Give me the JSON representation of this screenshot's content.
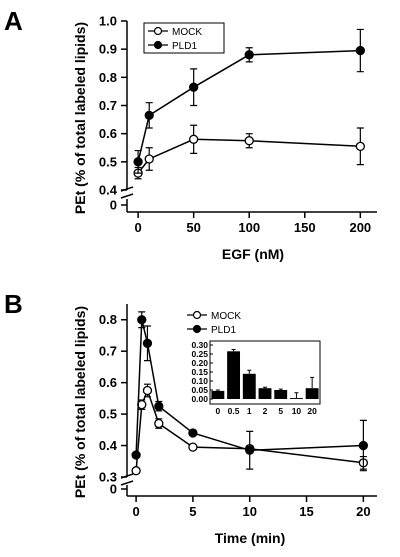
{
  "chart_data": [
    {
      "panel": "A",
      "type": "line",
      "xlabel": "EGF (nM)",
      "ylabel": "PEt (% of total labeled lipids)",
      "xlim": [
        -10,
        215
      ],
      "ylim": [
        0.4,
        1.0
      ],
      "axis_break": "y",
      "y_below_break_tick": "0",
      "xticks": [
        0,
        50,
        100,
        150,
        200
      ],
      "yticks": [
        0.4,
        0.5,
        0.6,
        0.7,
        0.8,
        0.9,
        1.0
      ],
      "xtick_labels": [
        "0",
        "50",
        "100",
        "150",
        "200"
      ],
      "ytick_labels": [
        "0.4",
        "0.5",
        "0.6",
        "0.7",
        "0.8",
        "0.9",
        "1.0"
      ],
      "legend_position": "top-left",
      "series": [
        {
          "name": "MOCK",
          "marker": "open-circle",
          "x": [
            0,
            10,
            50,
            100,
            200
          ],
          "y": [
            0.46,
            0.51,
            0.58,
            0.575,
            0.555
          ],
          "err": [
            0.02,
            0.04,
            0.05,
            0.025,
            0.065
          ]
        },
        {
          "name": "PLD1",
          "marker": "filled-circle",
          "x": [
            0,
            10,
            50,
            100,
            200
          ],
          "y": [
            0.5,
            0.665,
            0.765,
            0.88,
            0.895
          ],
          "err": [
            0.04,
            0.045,
            0.065,
            0.025,
            0.075
          ]
        }
      ]
    },
    {
      "panel": "B",
      "type": "line",
      "xlabel": "Time (min)",
      "ylabel": "PEt (% of total labeled lipids)",
      "xlim": [
        -0.8,
        21.2
      ],
      "ylim": [
        0.3,
        0.85
      ],
      "axis_break": "y",
      "y_below_break_tick": "0",
      "xticks": [
        0,
        5,
        10,
        15,
        20
      ],
      "yticks": [
        0.3,
        0.4,
        0.5,
        0.6,
        0.7,
        0.8
      ],
      "xtick_labels": [
        "0",
        "5",
        "10",
        "15",
        "20"
      ],
      "ytick_labels": [
        "0.3",
        "0.4",
        "0.5",
        "0.6",
        "0.7",
        "0.8"
      ],
      "legend_position": "top-right",
      "series": [
        {
          "name": "MOCK",
          "marker": "open-circle",
          "x": [
            0,
            0.5,
            1,
            2,
            5,
            10,
            20
          ],
          "y": [
            0.32,
            0.53,
            0.575,
            0.47,
            0.395,
            0.39,
            0.345
          ],
          "err": [
            0.005,
            0.015,
            0.02,
            0.015,
            0.005,
            0.01,
            0.02
          ]
        },
        {
          "name": "PLD1",
          "marker": "filled-circle",
          "x": [
            0,
            0.5,
            1,
            2,
            5,
            10,
            20
          ],
          "y": [
            0.37,
            0.8,
            0.725,
            0.525,
            0.44,
            0.385,
            0.4
          ],
          "err": [
            0.005,
            0.025,
            0.055,
            0.015,
            0.005,
            0.06,
            0.08
          ]
        }
      ],
      "inset": {
        "type": "bar",
        "categories": [
          "0",
          "0.5",
          "1",
          "2",
          "5",
          "10",
          "20"
        ],
        "values": [
          0.045,
          0.265,
          0.14,
          0.06,
          0.05,
          0.005,
          0.06
        ],
        "err": [
          0.005,
          0.01,
          0.02,
          0.005,
          0.005,
          0.03,
          0.06
        ],
        "ylim": [
          0,
          0.3
        ],
        "yticks": [
          0,
          0.05,
          0.1,
          0.15,
          0.2,
          0.25,
          0.3
        ],
        "ytick_labels": [
          "0.00",
          "0.05",
          "0.10",
          "0.15",
          "0.20",
          "0.25",
          "0.30"
        ]
      }
    }
  ]
}
